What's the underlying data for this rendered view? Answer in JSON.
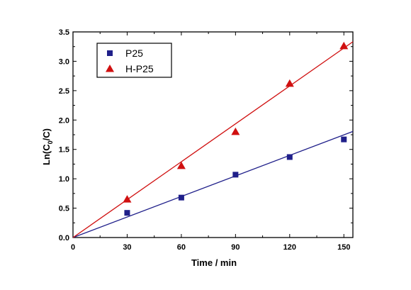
{
  "chart_data": {
    "type": "scatter",
    "title": "",
    "xlabel": "Time / min",
    "ylabel_parts": {
      "prefix": "Ln(C",
      "subscript": "0",
      "suffix": "/C)"
    },
    "xlim": [
      0,
      155
    ],
    "ylim": [
      0,
      3.5
    ],
    "x_ticks": [
      0,
      30,
      60,
      90,
      120,
      150
    ],
    "x_tick_labels": [
      "0",
      "30",
      "60",
      "90",
      "120",
      "150"
    ],
    "y_ticks": [
      0.0,
      0.5,
      1.0,
      1.5,
      2.0,
      2.5,
      3.0,
      3.5
    ],
    "y_tick_labels": [
      "0.0",
      "0.5",
      "1.0",
      "1.5",
      "2.0",
      "2.5",
      "3.0",
      "3.5"
    ],
    "grid": false,
    "legend_position": "top-left",
    "series": [
      {
        "name": "P25",
        "marker": "square",
        "color": "#1f1f8a",
        "x": [
          30,
          60,
          90,
          120,
          150
        ],
        "y": [
          0.42,
          0.68,
          1.07,
          1.37,
          1.67
        ],
        "fit_line": {
          "slope": 0.01165,
          "intercept": 0.0,
          "x_range": [
            0,
            155
          ]
        }
      },
      {
        "name": "H-P25",
        "marker": "triangle",
        "color": "#d01010",
        "x": [
          30,
          60,
          90,
          120,
          150
        ],
        "y": [
          0.65,
          1.22,
          1.8,
          2.62,
          3.26
        ],
        "fit_line": {
          "slope": 0.0215,
          "intercept": 0.0,
          "x_range": [
            0,
            155
          ]
        }
      }
    ]
  }
}
